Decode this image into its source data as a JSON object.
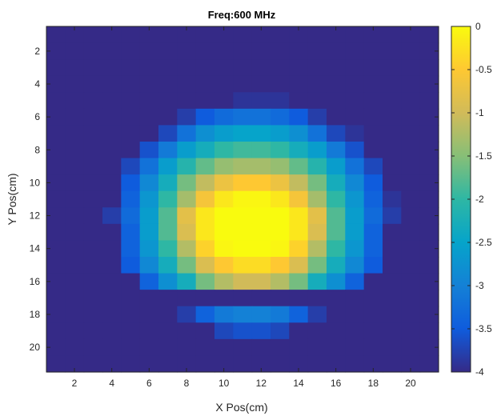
{
  "chart_data": {
    "type": "heatmap",
    "title": "Freq:600 MHz",
    "xlabel": "X Pos(cm)",
    "ylabel": "Y Pos(cm)",
    "x_range": [
      1,
      21
    ],
    "y_range": [
      1,
      21
    ],
    "x_ticks": [
      "2",
      "4",
      "6",
      "8",
      "10",
      "12",
      "14",
      "16",
      "18",
      "20"
    ],
    "y_ticks": [
      "2",
      "4",
      "6",
      "8",
      "10",
      "12",
      "14",
      "16",
      "18",
      "20"
    ],
    "y_direction": "reversed",
    "colorbar": {
      "colormap": "parula",
      "range": [
        -4,
        0
      ],
      "ticks": [
        "0",
        "-0.5",
        "-1",
        "-1.5",
        "-2",
        "-2.5",
        "-3",
        "-3.5",
        "-4"
      ]
    },
    "grid": false,
    "values": [
      [
        -4.0,
        -4.0,
        -4.0,
        -4.0,
        -4.0,
        -4.0,
        -4.0,
        -4.0,
        -4.0,
        -4.0,
        -4.0,
        -4.0,
        -4.0,
        -4.0,
        -4.0,
        -4.0,
        -4.0,
        -4.0,
        -4.0,
        -4.0,
        -4.0
      ],
      [
        -4.0,
        -4.0,
        -4.0,
        -4.0,
        -4.0,
        -4.0,
        -4.0,
        -4.0,
        -4.0,
        -4.0,
        -4.0,
        -4.0,
        -4.0,
        -4.0,
        -4.0,
        -4.0,
        -4.0,
        -4.0,
        -4.0,
        -4.0,
        -4.0
      ],
      [
        -4.0,
        -4.0,
        -4.0,
        -4.0,
        -4.0,
        -4.0,
        -4.0,
        -4.0,
        -4.0,
        -4.0,
        -4.0,
        -4.0,
        -4.0,
        -4.0,
        -4.0,
        -4.0,
        -4.0,
        -4.0,
        -4.0,
        -4.0,
        -4.0
      ],
      [
        -4.0,
        -4.0,
        -4.0,
        -4.0,
        -4.0,
        -4.0,
        -4.0,
        -4.0,
        -4.0,
        -4.0,
        -4.0,
        -4.0,
        -4.0,
        -4.0,
        -4.0,
        -4.0,
        -4.0,
        -4.0,
        -4.0,
        -4.0,
        -4.0
      ],
      [
        -4.0,
        -4.0,
        -4.0,
        -4.0,
        -4.0,
        -4.0,
        -4.0,
        -4.0,
        -4.0,
        -4.0,
        -3.9,
        -3.9,
        -3.9,
        -4.0,
        -4.0,
        -4.0,
        -4.0,
        -4.0,
        -4.0,
        -4.0,
        -4.0
      ],
      [
        -4.0,
        -4.0,
        -4.0,
        -4.0,
        -4.0,
        -4.0,
        -4.0,
        -3.8,
        -3.5,
        -3.3,
        -3.2,
        -3.2,
        -3.3,
        -3.5,
        -3.8,
        -4.0,
        -4.0,
        -4.0,
        -4.0,
        -4.0,
        -4.0
      ],
      [
        -4.0,
        -4.0,
        -4.0,
        -4.0,
        -4.0,
        -4.0,
        -3.7,
        -3.2,
        -2.8,
        -2.6,
        -2.5,
        -2.5,
        -2.6,
        -2.8,
        -3.2,
        -3.7,
        -3.9,
        -4.0,
        -4.0,
        -4.0,
        -4.0
      ],
      [
        -4.0,
        -4.0,
        -4.0,
        -4.0,
        -4.0,
        -3.6,
        -3.1,
        -2.6,
        -2.3,
        -2.0,
        -1.9,
        -1.9,
        -2.0,
        -2.3,
        -2.6,
        -3.1,
        -3.6,
        -4.0,
        -4.0,
        -4.0,
        -4.0
      ],
      [
        -4.0,
        -4.0,
        -4.0,
        -4.0,
        -3.7,
        -3.2,
        -2.6,
        -2.1,
        -1.7,
        -1.4,
        -1.3,
        -1.3,
        -1.4,
        -1.7,
        -2.1,
        -2.6,
        -3.2,
        -3.7,
        -4.0,
        -4.0,
        -4.0
      ],
      [
        -4.0,
        -4.0,
        -4.0,
        -4.0,
        -3.5,
        -2.9,
        -2.3,
        -1.6,
        -1.1,
        -0.7,
        -0.5,
        -0.5,
        -0.7,
        -1.1,
        -1.6,
        -2.3,
        -2.9,
        -3.5,
        -4.0,
        -4.0,
        -4.0
      ],
      [
        -4.0,
        -4.0,
        -4.0,
        -4.0,
        -3.4,
        -2.7,
        -2.0,
        -1.3,
        -0.6,
        -0.2,
        -0.05,
        -0.05,
        -0.2,
        -0.6,
        -1.3,
        -2.0,
        -2.7,
        -3.4,
        -3.9,
        -4.0,
        -4.0
      ],
      [
        -4.0,
        -4.0,
        -4.0,
        -3.8,
        -3.3,
        -2.6,
        -1.8,
        -0.8,
        -0.2,
        0.0,
        0.0,
        0.0,
        0.0,
        -0.2,
        -0.8,
        -1.8,
        -2.6,
        -3.3,
        -3.8,
        -4.0,
        -4.0
      ],
      [
        -4.0,
        -4.0,
        -4.0,
        -4.0,
        -3.4,
        -2.6,
        -1.8,
        -0.9,
        -0.2,
        0.0,
        0.0,
        0.0,
        0.0,
        -0.2,
        -0.9,
        -1.8,
        -2.6,
        -3.4,
        -4.0,
        -4.0,
        -4.0
      ],
      [
        -4.0,
        -4.0,
        -4.0,
        -4.0,
        -3.4,
        -2.7,
        -2.0,
        -1.2,
        -0.4,
        -0.05,
        0.0,
        0.0,
        -0.05,
        -0.4,
        -1.2,
        -2.0,
        -2.7,
        -3.4,
        -4.0,
        -4.0,
        -4.0
      ],
      [
        -4.0,
        -4.0,
        -4.0,
        -4.0,
        -3.5,
        -2.9,
        -2.3,
        -1.6,
        -0.9,
        -0.5,
        -0.3,
        -0.3,
        -0.5,
        -0.9,
        -1.6,
        -2.3,
        -2.9,
        -3.5,
        -4.0,
        -4.0,
        -4.0
      ],
      [
        -4.0,
        -4.0,
        -4.0,
        -4.0,
        -4.0,
        -3.4,
        -2.8,
        -2.3,
        -1.6,
        -1.2,
        -1.0,
        -1.0,
        -1.2,
        -1.6,
        -2.3,
        -2.8,
        -3.4,
        -4.0,
        -4.0,
        -4.0,
        -4.0
      ],
      [
        -4.0,
        -4.0,
        -4.0,
        -4.0,
        -4.0,
        -4.0,
        -4.0,
        -4.0,
        -4.0,
        -4.0,
        -4.0,
        -4.0,
        -4.0,
        -4.0,
        -4.0,
        -4.0,
        -4.0,
        -4.0,
        -4.0,
        -4.0,
        -4.0
      ],
      [
        -4.0,
        -4.0,
        -4.0,
        -4.0,
        -4.0,
        -4.0,
        -4.0,
        -3.8,
        -3.4,
        -3.1,
        -3.0,
        -3.0,
        -3.1,
        -3.4,
        -3.8,
        -4.0,
        -4.0,
        -4.0,
        -4.0,
        -4.0,
        -4.0
      ],
      [
        -4.0,
        -4.0,
        -4.0,
        -4.0,
        -4.0,
        -4.0,
        -4.0,
        -4.0,
        -4.0,
        -3.7,
        -3.6,
        -3.6,
        -3.7,
        -4.0,
        -4.0,
        -4.0,
        -4.0,
        -4.0,
        -4.0,
        -4.0,
        -4.0
      ],
      [
        -4.0,
        -4.0,
        -4.0,
        -4.0,
        -4.0,
        -4.0,
        -4.0,
        -4.0,
        -4.0,
        -4.0,
        -4.0,
        -4.0,
        -4.0,
        -4.0,
        -4.0,
        -4.0,
        -4.0,
        -4.0,
        -4.0,
        -4.0,
        -4.0
      ],
      [
        -4.0,
        -4.0,
        -4.0,
        -4.0,
        -4.0,
        -4.0,
        -4.0,
        -4.0,
        -4.0,
        -4.0,
        -4.0,
        -4.0,
        -4.0,
        -4.0,
        -4.0,
        -4.0,
        -4.0,
        -4.0,
        -4.0,
        -4.0,
        -4.0
      ]
    ]
  }
}
